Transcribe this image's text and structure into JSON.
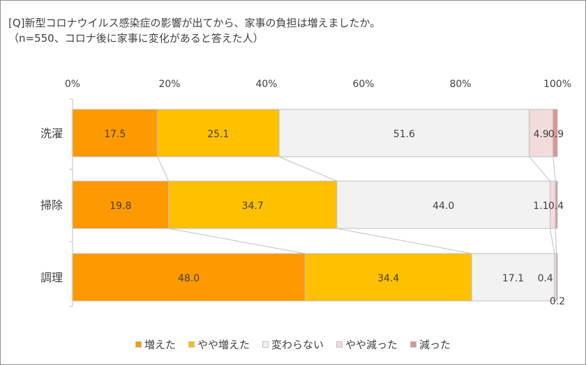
{
  "title": "[Q]新型コロナウイルス感染症の影響が出てから、家事の負担は増えましたか。",
  "subtitle": "（n=550、コロナ後に家事に変化があると答えた人）",
  "chart_data": {
    "type": "bar",
    "orientation": "horizontal",
    "stacked": true,
    "percent_stacked": true,
    "categories": [
      "洗濯",
      "掃除",
      "調理"
    ],
    "series": [
      {
        "name": "増えた",
        "values": [
          17.5,
          19.8,
          48.0
        ],
        "color": "#FF9900"
      },
      {
        "name": "やや増えた",
        "values": [
          25.1,
          34.7,
          34.4
        ],
        "color": "#FFC000"
      },
      {
        "name": "変わらない",
        "values": [
          51.6,
          44.0,
          17.1
        ],
        "color": "#F2F2F2"
      },
      {
        "name": "やや減った",
        "values": [
          4.9,
          1.1,
          0.4
        ],
        "color": "#F2DCDB"
      },
      {
        "name": "減った",
        "values": [
          0.9,
          0.4,
          0.2
        ],
        "color": "#D99594"
      }
    ],
    "x_ticks": [
      "0%",
      "20%",
      "40%",
      "60%",
      "80%",
      "100%"
    ],
    "xlim": [
      0,
      100
    ],
    "legend_position": "bottom",
    "series_lines": true
  }
}
